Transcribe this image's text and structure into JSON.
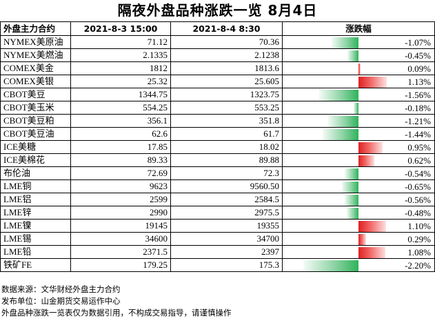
{
  "title": "隔夜外盘品种涨跌一览 8月4日",
  "header": {
    "name": "外盘主力合约",
    "date_a": "2021-8-3 15:00",
    "date_b": "2021-8-4 8:30",
    "change": "涨跌幅"
  },
  "colors": {
    "up": "#e02020",
    "down": "#2fb35b"
  },
  "rows": [
    {
      "name": "NYMEX美原油",
      "a": "71.12",
      "b": "70.36",
      "chg": "-1.07%",
      "pct": -1.07
    },
    {
      "name": "NYMEX美燃油",
      "a": "2.1335",
      "b": "2.1238",
      "chg": "-0.45%",
      "pct": -0.45
    },
    {
      "name": "COMEX美金",
      "a": "1812",
      "b": "1813.6",
      "chg": "0.09%",
      "pct": 0.09
    },
    {
      "name": "COMEX美银",
      "a": "25.32",
      "b": "25.605",
      "chg": "1.13%",
      "pct": 1.13
    },
    {
      "name": "CBOT美豆",
      "a": "1344.75",
      "b": "1323.75",
      "chg": "-1.56%",
      "pct": -1.56
    },
    {
      "name": "CBOT美玉米",
      "a": "554.25",
      "b": "553.25",
      "chg": "-0.18%",
      "pct": -0.18
    },
    {
      "name": "CBOT美豆粕",
      "a": "356.1",
      "b": "351.8",
      "chg": "-1.21%",
      "pct": -1.21
    },
    {
      "name": "CBOT美豆油",
      "a": "62.6",
      "b": "61.7",
      "chg": "-1.44%",
      "pct": -1.44
    },
    {
      "name": "ICE美糖",
      "a": "17.85",
      "b": "18.02",
      "chg": "0.95%",
      "pct": 0.95
    },
    {
      "name": "ICE美棉花",
      "a": "89.33",
      "b": "89.88",
      "chg": "0.62%",
      "pct": 0.62
    },
    {
      "name": "布伦油",
      "a": "72.69",
      "b": "72.3",
      "chg": "-0.54%",
      "pct": -0.54
    },
    {
      "name": "LME铜",
      "a": "9623",
      "b": "9560.50",
      "chg": "-0.65%",
      "pct": -0.65
    },
    {
      "name": "LME铝",
      "a": "2599",
      "b": "2584.5",
      "chg": "-0.56%",
      "pct": -0.56
    },
    {
      "name": "LME锌",
      "a": "2990",
      "b": "2975.5",
      "chg": "-0.48%",
      "pct": -0.48
    },
    {
      "name": "LME镍",
      "a": "19145",
      "b": "19355",
      "chg": "1.10%",
      "pct": 1.1
    },
    {
      "name": "LME锡",
      "a": "34600",
      "b": "34700",
      "chg": "0.29%",
      "pct": 0.29
    },
    {
      "name": "LME铅",
      "a": "2371.5",
      "b": "2397",
      "chg": "1.08%",
      "pct": 1.08
    },
    {
      "name": "铁矿FE",
      "a": "179.25",
      "b": "175.3",
      "chg": "-2.20%",
      "pct": -2.2
    }
  ],
  "footer": {
    "source": "数据来源：文华财经外盘主力合约",
    "publisher": "发布单位：山金期货交易运作中心",
    "disclaimer": "外盘品种涨跌一览表仅为数据引用，不构成交易指导，请谨慎操作"
  }
}
